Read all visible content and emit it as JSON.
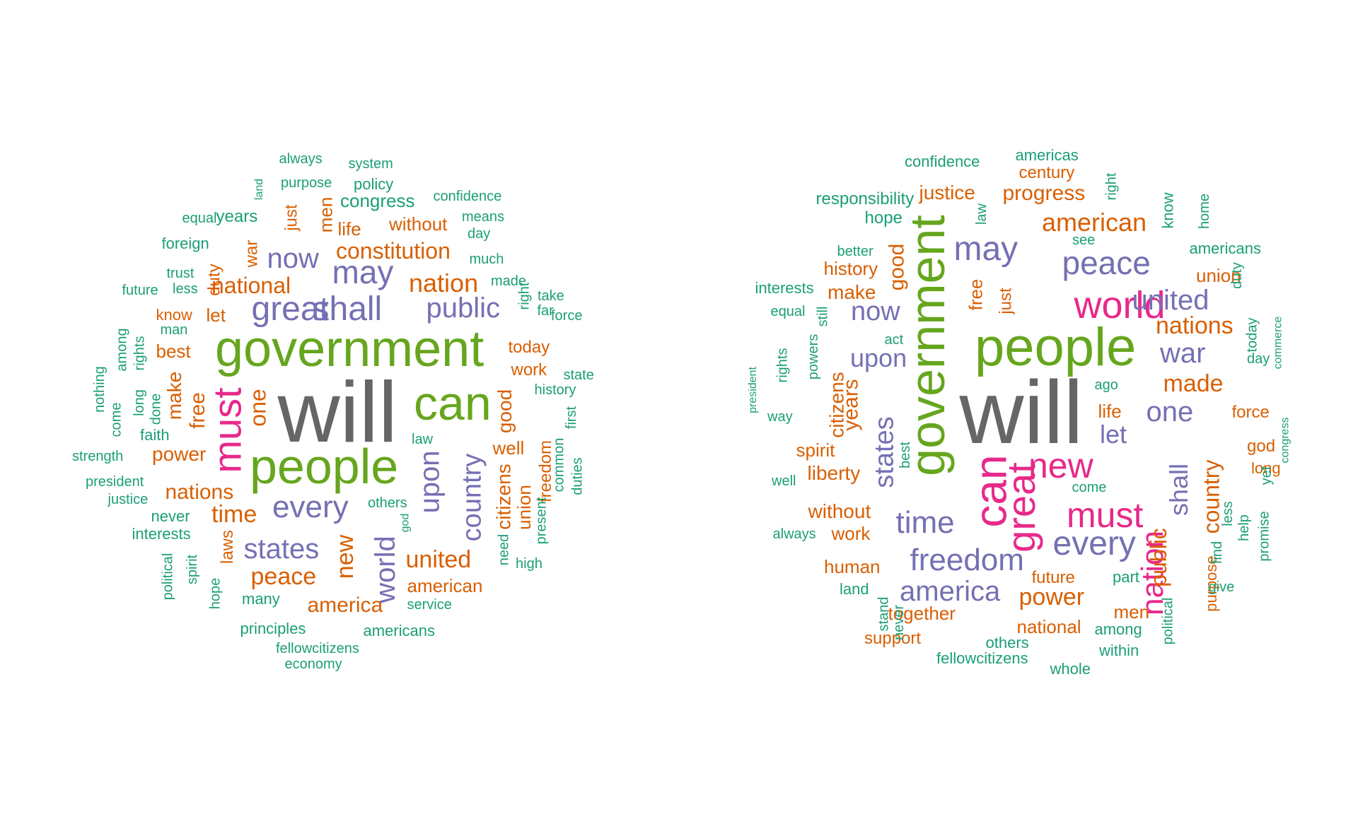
{
  "chart_data": [
    {
      "type": "wordcloud",
      "words": [
        {
          "text": "will",
          "color": "#666666"
        },
        {
          "text": "government",
          "color": "#66A61E"
        },
        {
          "text": "can",
          "color": "#66A61E"
        },
        {
          "text": "people",
          "color": "#66A61E"
        },
        {
          "text": "must",
          "color": "#E7298A"
        },
        {
          "text": "shall",
          "color": "#7570B3"
        },
        {
          "text": "great",
          "color": "#7570B3"
        },
        {
          "text": "every",
          "color": "#7570B3"
        },
        {
          "text": "upon",
          "color": "#7570B3"
        },
        {
          "text": "country",
          "color": "#7570B3"
        },
        {
          "text": "may",
          "color": "#7570B3"
        },
        {
          "text": "now",
          "color": "#7570B3"
        },
        {
          "text": "public",
          "color": "#7570B3"
        },
        {
          "text": "states",
          "color": "#7570B3"
        },
        {
          "text": "world",
          "color": "#7570B3"
        },
        {
          "text": "nation",
          "color": "#D95F02"
        },
        {
          "text": "constitution",
          "color": "#D95F02"
        },
        {
          "text": "national",
          "color": "#D95F02"
        },
        {
          "text": "one",
          "color": "#D95F02"
        },
        {
          "text": "time",
          "color": "#D95F02"
        },
        {
          "text": "peace",
          "color": "#D95F02"
        },
        {
          "text": "united",
          "color": "#D95F02"
        },
        {
          "text": "new",
          "color": "#D95F02"
        },
        {
          "text": "america",
          "color": "#D95F02"
        },
        {
          "text": "american",
          "color": "#D95F02"
        },
        {
          "text": "nations",
          "color": "#D95F02"
        },
        {
          "text": "free",
          "color": "#D95F02"
        },
        {
          "text": "power",
          "color": "#D95F02"
        },
        {
          "text": "citizens",
          "color": "#D95F02"
        },
        {
          "text": "union",
          "color": "#D95F02"
        },
        {
          "text": "good",
          "color": "#D95F02"
        },
        {
          "text": "well",
          "color": "#D95F02"
        },
        {
          "text": "work",
          "color": "#D95F02"
        },
        {
          "text": "today",
          "color": "#D95F02"
        },
        {
          "text": "make",
          "color": "#D95F02"
        },
        {
          "text": "best",
          "color": "#D95F02"
        },
        {
          "text": "let",
          "color": "#D95F02"
        },
        {
          "text": "know",
          "color": "#D95F02"
        },
        {
          "text": "duty",
          "color": "#D95F02"
        },
        {
          "text": "war",
          "color": "#D95F02"
        },
        {
          "text": "without",
          "color": "#D95F02"
        },
        {
          "text": "life",
          "color": "#D95F02"
        },
        {
          "text": "men",
          "color": "#D95F02"
        },
        {
          "text": "just",
          "color": "#D95F02"
        },
        {
          "text": "laws",
          "color": "#D95F02"
        },
        {
          "text": "freedom",
          "color": "#D95F02"
        },
        {
          "text": "congress",
          "color": "#1B9E77"
        },
        {
          "text": "years",
          "color": "#1B9E77"
        },
        {
          "text": "policy",
          "color": "#1B9E77"
        },
        {
          "text": "system",
          "color": "#1B9E77"
        },
        {
          "text": "always",
          "color": "#1B9E77"
        },
        {
          "text": "purpose",
          "color": "#1B9E77"
        },
        {
          "text": "land",
          "color": "#1B9E77"
        },
        {
          "text": "confidence",
          "color": "#1B9E77"
        },
        {
          "text": "means",
          "color": "#1B9E77"
        },
        {
          "text": "day",
          "color": "#1B9E77"
        },
        {
          "text": "much",
          "color": "#1B9E77"
        },
        {
          "text": "made",
          "color": "#1B9E77"
        },
        {
          "text": "take",
          "color": "#1B9E77"
        },
        {
          "text": "force",
          "color": "#1B9E77"
        },
        {
          "text": "far",
          "color": "#1B9E77"
        },
        {
          "text": "right",
          "color": "#1B9E77"
        },
        {
          "text": "state",
          "color": "#1B9E77"
        },
        {
          "text": "history",
          "color": "#1B9E77"
        },
        {
          "text": "first",
          "color": "#1B9E77"
        },
        {
          "text": "common",
          "color": "#1B9E77"
        },
        {
          "text": "present",
          "color": "#1B9E77"
        },
        {
          "text": "duties",
          "color": "#1B9E77"
        },
        {
          "text": "high",
          "color": "#1B9E77"
        },
        {
          "text": "need",
          "color": "#1B9E77"
        },
        {
          "text": "law",
          "color": "#1B9E77"
        },
        {
          "text": "others",
          "color": "#1B9E77"
        },
        {
          "text": "god",
          "color": "#1B9E77"
        },
        {
          "text": "service",
          "color": "#1B9E77"
        },
        {
          "text": "americans",
          "color": "#1B9E77"
        },
        {
          "text": "principles",
          "color": "#1B9E77"
        },
        {
          "text": "fellowcitizens",
          "color": "#1B9E77"
        },
        {
          "text": "economy",
          "color": "#1B9E77"
        },
        {
          "text": "many",
          "color": "#1B9E77"
        },
        {
          "text": "hope",
          "color": "#1B9E77"
        },
        {
          "text": "spirit",
          "color": "#1B9E77"
        },
        {
          "text": "political",
          "color": "#1B9E77"
        },
        {
          "text": "interests",
          "color": "#1B9E77"
        },
        {
          "text": "never",
          "color": "#1B9E77"
        },
        {
          "text": "justice",
          "color": "#1B9E77"
        },
        {
          "text": "president",
          "color": "#1B9E77"
        },
        {
          "text": "strength",
          "color": "#1B9E77"
        },
        {
          "text": "faith",
          "color": "#1B9E77"
        },
        {
          "text": "come",
          "color": "#1B9E77"
        },
        {
          "text": "nothing",
          "color": "#1B9E77"
        },
        {
          "text": "among",
          "color": "#1B9E77"
        },
        {
          "text": "rights",
          "color": "#1B9E77"
        },
        {
          "text": "long",
          "color": "#1B9E77"
        },
        {
          "text": "done",
          "color": "#1B9E77"
        },
        {
          "text": "man",
          "color": "#1B9E77"
        },
        {
          "text": "less",
          "color": "#1B9E77"
        },
        {
          "text": "trust",
          "color": "#1B9E77"
        },
        {
          "text": "future",
          "color": "#1B9E77"
        },
        {
          "text": "foreign",
          "color": "#1B9E77"
        },
        {
          "text": "equal",
          "color": "#1B9E77"
        }
      ]
    },
    {
      "type": "wordcloud",
      "words": [
        {
          "text": "will",
          "color": "#666666"
        },
        {
          "text": "people",
          "color": "#66A61E"
        },
        {
          "text": "government",
          "color": "#66A61E"
        },
        {
          "text": "can",
          "color": "#E7298A"
        },
        {
          "text": "great",
          "color": "#E7298A"
        },
        {
          "text": "world",
          "color": "#E7298A"
        },
        {
          "text": "nation",
          "color": "#E7298A"
        },
        {
          "text": "must",
          "color": "#E7298A"
        },
        {
          "text": "new",
          "color": "#E7298A"
        },
        {
          "text": "may",
          "color": "#7570B3"
        },
        {
          "text": "peace",
          "color": "#7570B3"
        },
        {
          "text": "united",
          "color": "#7570B3"
        },
        {
          "text": "war",
          "color": "#7570B3"
        },
        {
          "text": "one",
          "color": "#7570B3"
        },
        {
          "text": "let",
          "color": "#7570B3"
        },
        {
          "text": "shall",
          "color": "#7570B3"
        },
        {
          "text": "every",
          "color": "#7570B3"
        },
        {
          "text": "time",
          "color": "#7570B3"
        },
        {
          "text": "freedom",
          "color": "#7570B3"
        },
        {
          "text": "america",
          "color": "#7570B3"
        },
        {
          "text": "states",
          "color": "#7570B3"
        },
        {
          "text": "now",
          "color": "#7570B3"
        },
        {
          "text": "upon",
          "color": "#7570B3"
        },
        {
          "text": "american",
          "color": "#D95F02"
        },
        {
          "text": "nations",
          "color": "#D95F02"
        },
        {
          "text": "made",
          "color": "#D95F02"
        },
        {
          "text": "country",
          "color": "#D95F02"
        },
        {
          "text": "public",
          "color": "#D95F02"
        },
        {
          "text": "power",
          "color": "#D95F02"
        },
        {
          "text": "progress",
          "color": "#D95F02"
        },
        {
          "text": "justice",
          "color": "#D95F02"
        },
        {
          "text": "century",
          "color": "#D95F02"
        },
        {
          "text": "union",
          "color": "#D95F02"
        },
        {
          "text": "history",
          "color": "#D95F02"
        },
        {
          "text": "make",
          "color": "#D95F02"
        },
        {
          "text": "good",
          "color": "#D95F02"
        },
        {
          "text": "free",
          "color": "#D95F02"
        },
        {
          "text": "just",
          "color": "#D95F02"
        },
        {
          "text": "years",
          "color": "#D95F02"
        },
        {
          "text": "citizens",
          "color": "#D95F02"
        },
        {
          "text": "spirit",
          "color": "#D95F02"
        },
        {
          "text": "liberty",
          "color": "#D95F02"
        },
        {
          "text": "without",
          "color": "#D95F02"
        },
        {
          "text": "work",
          "color": "#D95F02"
        },
        {
          "text": "human",
          "color": "#D95F02"
        },
        {
          "text": "together",
          "color": "#D95F02"
        },
        {
          "text": "support",
          "color": "#D95F02"
        },
        {
          "text": "national",
          "color": "#D95F02"
        },
        {
          "text": "future",
          "color": "#D95F02"
        },
        {
          "text": "men",
          "color": "#D95F02"
        },
        {
          "text": "purpose",
          "color": "#D95F02"
        },
        {
          "text": "life",
          "color": "#D95F02"
        },
        {
          "text": "force",
          "color": "#D95F02"
        },
        {
          "text": "god",
          "color": "#D95F02"
        },
        {
          "text": "long",
          "color": "#D95F02"
        },
        {
          "text": "confidence",
          "color": "#1B9E77"
        },
        {
          "text": "americas",
          "color": "#1B9E77"
        },
        {
          "text": "responsibility",
          "color": "#1B9E77"
        },
        {
          "text": "hope",
          "color": "#1B9E77"
        },
        {
          "text": "right",
          "color": "#1B9E77"
        },
        {
          "text": "law",
          "color": "#1B9E77"
        },
        {
          "text": "know",
          "color": "#1B9E77"
        },
        {
          "text": "home",
          "color": "#1B9E77"
        },
        {
          "text": "see",
          "color": "#1B9E77"
        },
        {
          "text": "americans",
          "color": "#1B9E77"
        },
        {
          "text": "better",
          "color": "#1B9E77"
        },
        {
          "text": "duty",
          "color": "#1B9E77"
        },
        {
          "text": "interests",
          "color": "#1B9E77"
        },
        {
          "text": "equal",
          "color": "#1B9E77"
        },
        {
          "text": "still",
          "color": "#1B9E77"
        },
        {
          "text": "today",
          "color": "#1B9E77"
        },
        {
          "text": "day",
          "color": "#1B9E77"
        },
        {
          "text": "commerce",
          "color": "#1B9E77"
        },
        {
          "text": "act",
          "color": "#1B9E77"
        },
        {
          "text": "powers",
          "color": "#1B9E77"
        },
        {
          "text": "rights",
          "color": "#1B9E77"
        },
        {
          "text": "president",
          "color": "#1B9E77"
        },
        {
          "text": "way",
          "color": "#1B9E77"
        },
        {
          "text": "ago",
          "color": "#1B9E77"
        },
        {
          "text": "congress",
          "color": "#1B9E77"
        },
        {
          "text": "best",
          "color": "#1B9E77"
        },
        {
          "text": "well",
          "color": "#1B9E77"
        },
        {
          "text": "come",
          "color": "#1B9E77"
        },
        {
          "text": "yet",
          "color": "#1B9E77"
        },
        {
          "text": "less",
          "color": "#1B9E77"
        },
        {
          "text": "always",
          "color": "#1B9E77"
        },
        {
          "text": "help",
          "color": "#1B9E77"
        },
        {
          "text": "promise",
          "color": "#1B9E77"
        },
        {
          "text": "find",
          "color": "#1B9E77"
        },
        {
          "text": "give",
          "color": "#1B9E77"
        },
        {
          "text": "part",
          "color": "#1B9E77"
        },
        {
          "text": "land",
          "color": "#1B9E77"
        },
        {
          "text": "stand",
          "color": "#1B9E77"
        },
        {
          "text": "never",
          "color": "#1B9E77"
        },
        {
          "text": "among",
          "color": "#1B9E77"
        },
        {
          "text": "political",
          "color": "#1B9E77"
        },
        {
          "text": "others",
          "color": "#1B9E77"
        },
        {
          "text": "fellowcitizens",
          "color": "#1B9E77"
        },
        {
          "text": "within",
          "color": "#1B9E77"
        },
        {
          "text": "whole",
          "color": "#1B9E77"
        }
      ]
    }
  ]
}
